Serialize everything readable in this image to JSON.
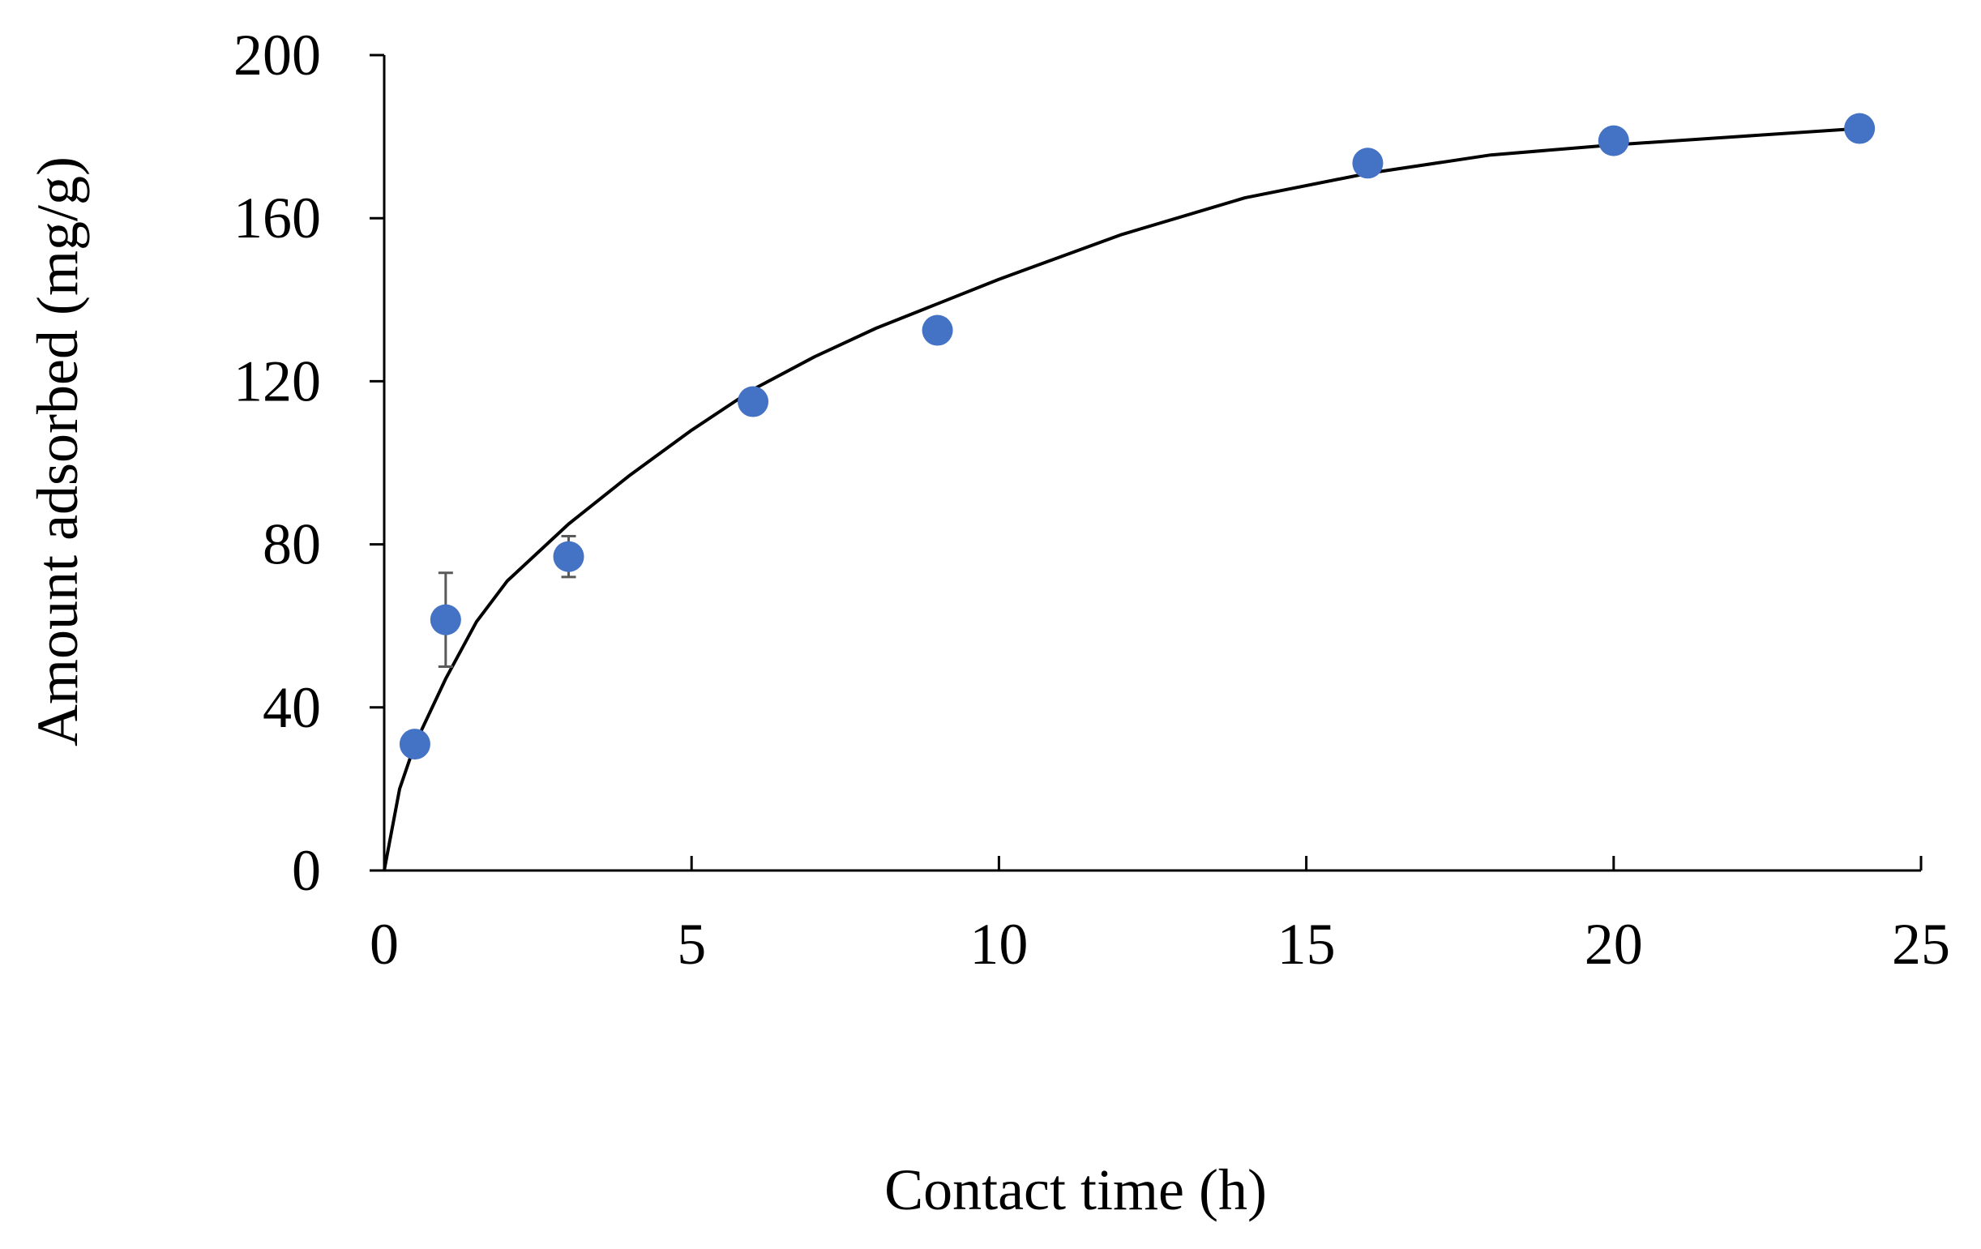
{
  "chart_data": {
    "type": "scatter",
    "title": "",
    "xlabel": "Contact time (h)",
    "ylabel": "Amount adsorbed (mg/g)",
    "xlim": [
      0,
      25
    ],
    "ylim": [
      0,
      200
    ],
    "x_ticks": [
      0,
      5,
      10,
      15,
      20,
      25
    ],
    "y_ticks": [
      0,
      40,
      80,
      120,
      160,
      200
    ],
    "grid": false,
    "legend": "none",
    "colors": {
      "points": "#4472C4",
      "fit": "#000000",
      "error_bars": "#595959",
      "axes": "#000000"
    },
    "points": {
      "x": [
        0.5,
        1,
        3,
        6,
        9,
        16,
        20,
        24
      ],
      "y": [
        31,
        61.5,
        77,
        115,
        132.5,
        173.5,
        179,
        182
      ],
      "error": [
        0,
        11.5,
        5,
        0,
        0,
        0,
        0,
        0
      ]
    },
    "fit_curve": {
      "x": [
        0,
        0.25,
        0.5,
        1,
        1.5,
        2,
        3,
        4,
        5,
        6,
        7,
        8,
        9,
        10,
        12,
        14,
        16,
        18,
        20,
        22,
        24
      ],
      "y": [
        0,
        20,
        31,
        47,
        61,
        71,
        85,
        97,
        108,
        118,
        126,
        133,
        139,
        145,
        156,
        165,
        171,
        175.5,
        178,
        180,
        182
      ]
    }
  }
}
